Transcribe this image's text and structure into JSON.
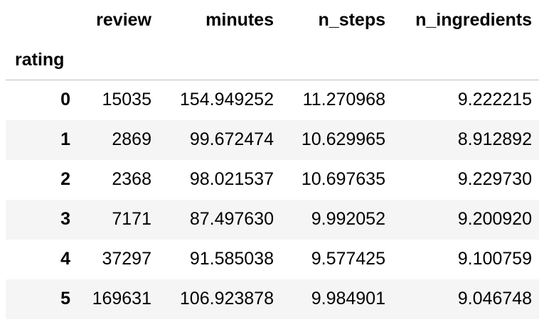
{
  "table": {
    "index_name": "rating",
    "columns": [
      "review",
      "minutes",
      "n_steps",
      "n_ingredients"
    ],
    "rows": [
      {
        "index": "0",
        "cells": [
          "15035",
          "154.949252",
          "11.270968",
          "9.222215"
        ]
      },
      {
        "index": "1",
        "cells": [
          "2869",
          "99.672474",
          "10.629965",
          "8.912892"
        ]
      },
      {
        "index": "2",
        "cells": [
          "2368",
          "98.021537",
          "10.697635",
          "9.229730"
        ]
      },
      {
        "index": "3",
        "cells": [
          "7171",
          "87.497630",
          "9.992052",
          "9.200920"
        ]
      },
      {
        "index": "4",
        "cells": [
          "37297",
          "91.585038",
          "9.577425",
          "9.100759"
        ]
      },
      {
        "index": "5",
        "cells": [
          "169631",
          "106.923878",
          "9.984901",
          "9.046748"
        ]
      }
    ]
  },
  "colors": {
    "stripe": "#f5f5f5",
    "header_rule": "#bdbdbd",
    "text": "#000000"
  }
}
